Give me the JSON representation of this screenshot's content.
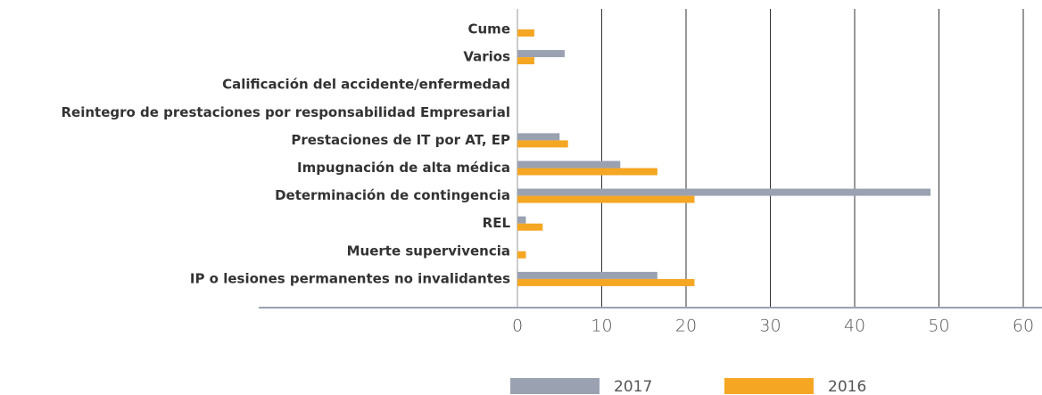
{
  "chart_data": {
    "type": "bar",
    "orientation": "horizontal",
    "categories": [
      "Cume",
      "Varios",
      "Calificación del accidente/enfermedad",
      "Reintegro de prestaciones por responsabilidad Empresarial",
      "Prestaciones de IT por AT, EP",
      "Impugnación de alta médica",
      "Determinación de contingencia",
      "REL",
      "Muerte supervivencia",
      "IP o lesiones permanentes no invalidantes"
    ],
    "series": [
      {
        "name": "2017",
        "color": "#9aa1b1",
        "values": [
          0,
          5.6,
          0,
          0,
          5,
          12.2,
          49,
          1,
          0,
          16.6
        ]
      },
      {
        "name": "2016",
        "color": "#f5a623",
        "values": [
          2,
          2,
          0,
          0,
          6,
          16.6,
          21,
          3,
          1,
          21
        ]
      }
    ],
    "xlim": [
      0,
      60
    ],
    "xticks": [
      0,
      10,
      20,
      30,
      40,
      50,
      60
    ],
    "grid": true,
    "legend": "bottom"
  }
}
